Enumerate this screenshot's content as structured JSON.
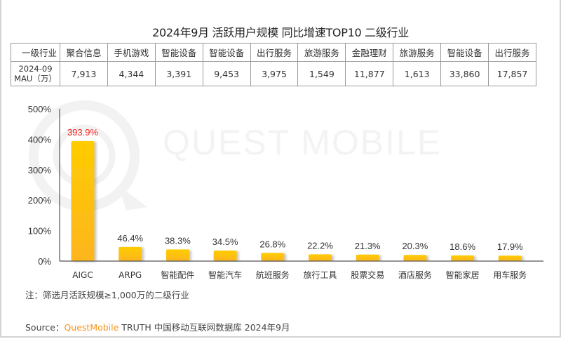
{
  "title": "2024年9月 活跃用户规模 同比增速TOP10 二级行业",
  "watermark": "QUEST MOBILE",
  "table": {
    "row_headers": [
      "一级行业",
      "2024-09",
      "MAU（万）"
    ],
    "first_level_industries": [
      "聚合信息",
      "手机游戏",
      "智能设备",
      "智能设备",
      "出行服务",
      "旅游服务",
      "金融理财",
      "旅游服务",
      "智能设备",
      "出行服务"
    ],
    "mau": [
      "7,913",
      "4,344",
      "3,391",
      "9,453",
      "3,975",
      "1,549",
      "11,877",
      "1,613",
      "33,860",
      "17,857"
    ]
  },
  "chart_data": {
    "type": "bar",
    "title": "2024年9月 活跃用户规模 同比增速TOP10 二级行业",
    "xlabel": "",
    "ylabel": "",
    "categories": [
      "AIGC",
      "ARPG",
      "智能配件",
      "智能汽车",
      "航班服务",
      "旅行工具",
      "股票交易",
      "酒店服务",
      "智能家居",
      "用车服务"
    ],
    "values": [
      393.9,
      46.4,
      38.3,
      34.5,
      26.8,
      22.2,
      21.3,
      20.3,
      18.6,
      17.9
    ],
    "value_labels": [
      "393.9%",
      "46.4%",
      "38.3%",
      "34.5%",
      "26.8%",
      "22.2%",
      "21.3%",
      "20.3%",
      "18.6%",
      "17.9%"
    ],
    "highlight_index": 0,
    "unit": "%",
    "ylim": [
      0,
      500
    ],
    "yticks": [
      0,
      100,
      200,
      300,
      400,
      500
    ],
    "ytick_labels": [
      "0%",
      "100%",
      "200%",
      "300%",
      "400%",
      "500%"
    ],
    "grid": false,
    "legend": "none",
    "colors": {
      "bar_top": "#ffcc00",
      "bar_bottom": "#fdb51e",
      "highlight_label": "#ff1a1a",
      "axis": "#333333"
    }
  },
  "footer": {
    "note": "注：筛选月活跃规模≥1,000万的二级行业",
    "source_prefix": "Source：",
    "source_brand": "QuestMobile",
    "source_rest": " TRUTH 中国移动互联网数据库 2024年9月"
  },
  "colors": {
    "brand": "#f7941d",
    "frame": "#d4d4d4",
    "table_border": "#9a9a9a"
  }
}
